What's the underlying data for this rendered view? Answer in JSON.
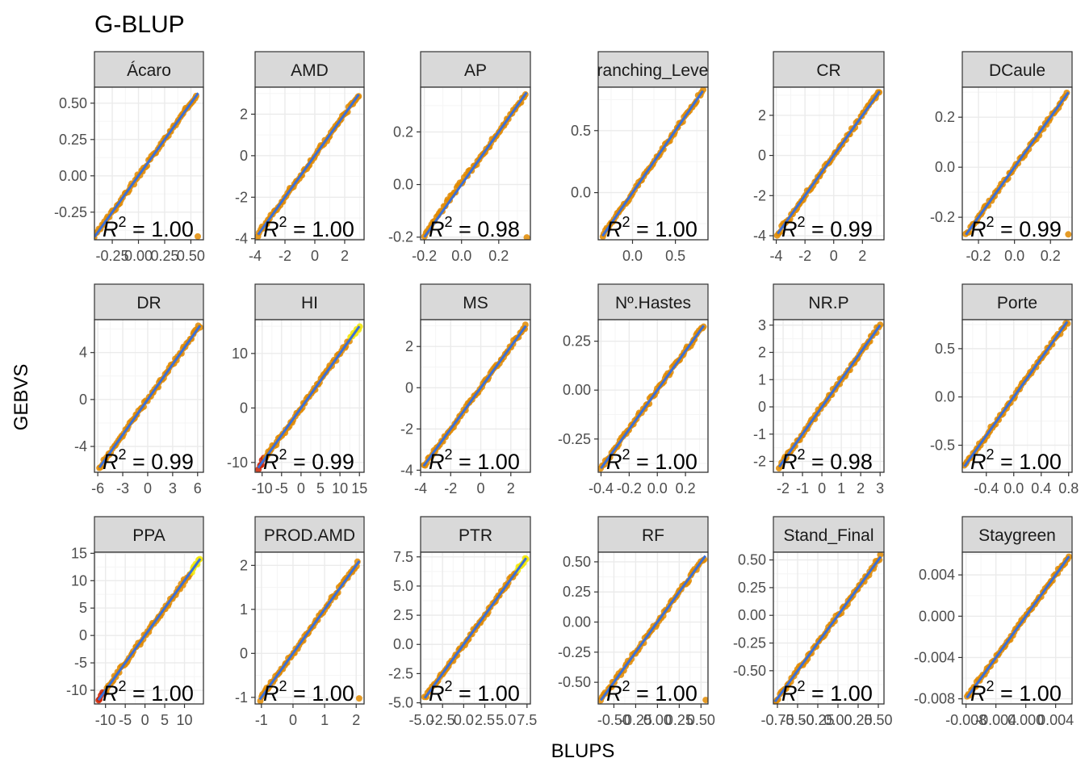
{
  "chart_data": {
    "type": "scatter",
    "title": "G-BLUP",
    "xlabel": "BLUPS",
    "ylabel": "GEBVS",
    "grid": true,
    "facets": [
      {
        "label": "Ácaro",
        "r2": "1.00",
        "xlim": [
          -0.42,
          0.62
        ],
        "ylim": [
          -0.44,
          0.61
        ],
        "xticks": [
          -0.25,
          0,
          0.25,
          0.5
        ],
        "xtick_labels": [
          "-0.25",
          "0.00",
          "0.25",
          "0.50"
        ],
        "yticks": [
          -0.25,
          0,
          0.25,
          0.5
        ],
        "ytick_labels": [
          "-0.25",
          "0.00",
          "0.25",
          "0.50"
        ],
        "points": [
          [
            -0.42,
            -0.42
          ],
          [
            -0.3,
            -0.3
          ],
          [
            -0.2,
            -0.2
          ],
          [
            -0.1,
            -0.1
          ],
          [
            0,
            0
          ],
          [
            0.1,
            0.1
          ],
          [
            0.2,
            0.2
          ],
          [
            0.3,
            0.3
          ],
          [
            0.4,
            0.4
          ],
          [
            0.5,
            0.5
          ],
          [
            0.57,
            0.57
          ]
        ]
      },
      {
        "label": "AMD",
        "r2": "1.00",
        "xlim": [
          -4.0,
          3.3
        ],
        "ylim": [
          -4.05,
          3.3
        ],
        "xticks": [
          -4,
          -2,
          0,
          2
        ],
        "xtick_labels": [
          "-4",
          "-2",
          "0",
          "2"
        ],
        "yticks": [
          -4,
          -2,
          0,
          2
        ],
        "ytick_labels": [
          "-4",
          "-2",
          "0",
          "2"
        ],
        "points": [
          [
            -3.8,
            -3.8
          ],
          [
            -3,
            -3
          ],
          [
            -2,
            -2
          ],
          [
            -1,
            -1
          ],
          [
            0,
            0
          ],
          [
            1,
            1
          ],
          [
            2,
            2
          ],
          [
            2.7,
            2.7
          ],
          [
            2.95,
            2.95
          ]
        ]
      },
      {
        "label": "AP",
        "r2": "0.98",
        "xlim": [
          -0.22,
          0.37
        ],
        "ylim": [
          -0.21,
          0.37
        ],
        "xticks": [
          -0.2,
          0,
          0.2
        ],
        "xtick_labels": [
          "-0.2",
          "0.0",
          "0.2"
        ],
        "yticks": [
          -0.2,
          0,
          0.2
        ],
        "ytick_labels": [
          "-0.2",
          "0.0",
          "0.2"
        ],
        "points": [
          [
            -0.2,
            -0.2
          ],
          [
            -0.1,
            -0.09
          ],
          [
            0,
            0.01
          ],
          [
            0.1,
            0.1
          ],
          [
            0.2,
            0.2
          ],
          [
            0.3,
            0.3
          ],
          [
            0.35,
            0.35
          ]
        ]
      },
      {
        "label": "Branching_Levels",
        "r2": "1.00",
        "xlim": [
          -0.4,
          0.88
        ],
        "ylim": [
          -0.38,
          0.85
        ],
        "xticks": [
          0,
          0.5
        ],
        "xtick_labels": [
          "0.0",
          "0.5"
        ],
        "yticks": [
          0,
          0.5
        ],
        "ytick_labels": [
          "0.0",
          "0.5"
        ],
        "points": [
          [
            -0.35,
            -0.35
          ],
          [
            -0.2,
            -0.2
          ],
          [
            0,
            0
          ],
          [
            0.2,
            0.2
          ],
          [
            0.4,
            0.4
          ],
          [
            0.6,
            0.6
          ],
          [
            0.82,
            0.82
          ]
        ]
      },
      {
        "label": "CR",
        "r2": "0.99",
        "xlim": [
          -4.2,
          3.5
        ],
        "ylim": [
          -4.2,
          3.4
        ],
        "xticks": [
          -4,
          -2,
          0,
          2
        ],
        "xtick_labels": [
          "-4",
          "-2",
          "0",
          "2"
        ],
        "yticks": [
          -4,
          -2,
          0,
          2
        ],
        "ytick_labels": [
          "-4",
          "-2",
          "0",
          "2"
        ],
        "points": [
          [
            -3.9,
            -3.9
          ],
          [
            -3,
            -3
          ],
          [
            -2,
            -2
          ],
          [
            -1,
            -1
          ],
          [
            0,
            0
          ],
          [
            1,
            1
          ],
          [
            2,
            2
          ],
          [
            3.2,
            3.2
          ]
        ]
      },
      {
        "label": "DCaule",
        "r2": "0.99",
        "xlim": [
          -0.29,
          0.32
        ],
        "ylim": [
          -0.29,
          0.32
        ],
        "xticks": [
          -0.2,
          0,
          0.2
        ],
        "xtick_labels": [
          "-0.2",
          "0.0",
          "0.2"
        ],
        "yticks": [
          -0.2,
          0,
          0.2
        ],
        "ytick_labels": [
          "-0.2",
          "0.0",
          "0.2"
        ],
        "points": [
          [
            -0.27,
            -0.27
          ],
          [
            -0.2,
            -0.2
          ],
          [
            -0.1,
            -0.1
          ],
          [
            0,
            0
          ],
          [
            0.1,
            0.1
          ],
          [
            0.2,
            0.2
          ],
          [
            0.3,
            0.3
          ]
        ]
      },
      {
        "label": "DR",
        "r2": "0.99",
        "xlim": [
          -6.4,
          6.7
        ],
        "ylim": [
          -6.2,
          6.8
        ],
        "xticks": [
          -6,
          -3,
          0,
          3,
          6
        ],
        "xtick_labels": [
          "-6",
          "-3",
          "0",
          "3",
          "6"
        ],
        "yticks": [
          -4,
          0,
          4
        ],
        "ytick_labels": [
          "-4",
          "0",
          "4"
        ],
        "points": [
          [
            -5.8,
            -5.8
          ],
          [
            -4,
            -4
          ],
          [
            -2,
            -2
          ],
          [
            0,
            0
          ],
          [
            2,
            2
          ],
          [
            4,
            4
          ],
          [
            6.3,
            6.3
          ]
        ]
      },
      {
        "label": "HI",
        "r2": "0.99",
        "xlim": [
          -11.8,
          16.2
        ],
        "ylim": [
          -11.8,
          16.2
        ],
        "xticks": [
          -10,
          -5,
          0,
          5,
          10,
          15
        ],
        "xtick_labels": [
          "-10",
          "-5",
          "0",
          "5",
          "10",
          "15"
        ],
        "yticks": [
          -10,
          0,
          10
        ],
        "ytick_labels": [
          "-10",
          "0",
          "10"
        ],
        "points": [
          [
            -11,
            -11
          ],
          [
            -8,
            -8
          ],
          [
            -5,
            -5
          ],
          [
            0,
            0
          ],
          [
            5,
            5
          ],
          [
            10,
            10
          ],
          [
            15,
            15
          ]
        ]
      },
      {
        "label": "MS",
        "r2": "1.00",
        "xlim": [
          -4.0,
          3.3
        ],
        "ylim": [
          -4.1,
          3.3
        ],
        "xticks": [
          -4,
          -2,
          0,
          2
        ],
        "xtick_labels": [
          "-4",
          "-2",
          "0",
          "2"
        ],
        "yticks": [
          -4,
          -2,
          0,
          2
        ],
        "ytick_labels": [
          "-4",
          "-2",
          "0",
          "2"
        ],
        "points": [
          [
            -3.8,
            -3.8
          ],
          [
            -3,
            -3
          ],
          [
            -2,
            -2
          ],
          [
            -1,
            -1
          ],
          [
            0,
            0
          ],
          [
            1,
            1
          ],
          [
            2,
            2
          ],
          [
            3,
            3
          ]
        ]
      },
      {
        "label": "Nº.Hastes",
        "r2": "1.00",
        "xlim": [
          -0.42,
          0.36
        ],
        "ylim": [
          -0.42,
          0.36
        ],
        "xticks": [
          -0.4,
          -0.2,
          0,
          0.2
        ],
        "xtick_labels": [
          "-0.4",
          "-0.2",
          "0.0",
          "0.2"
        ],
        "yticks": [
          -0.25,
          0,
          0.25
        ],
        "ytick_labels": [
          "-0.25",
          "0.00",
          "0.25"
        ],
        "points": [
          [
            -0.4,
            -0.4
          ],
          [
            -0.3,
            -0.3
          ],
          [
            -0.2,
            -0.2
          ],
          [
            -0.1,
            -0.1
          ],
          [
            0,
            0
          ],
          [
            0.1,
            0.1
          ],
          [
            0.2,
            0.2
          ],
          [
            0.33,
            0.33
          ]
        ]
      },
      {
        "label": "NR.P",
        "r2": "0.98",
        "xlim": [
          -2.5,
          3.2
        ],
        "ylim": [
          -2.4,
          3.2
        ],
        "xticks": [
          -2,
          -1,
          0,
          1,
          2,
          3
        ],
        "xtick_labels": [
          "-2",
          "-1",
          "0",
          "1",
          "2",
          "3"
        ],
        "yticks": [
          -2,
          -1,
          0,
          1,
          2,
          3
        ],
        "ytick_labels": [
          "-2",
          "-1",
          "0",
          "1",
          "2",
          "3"
        ],
        "points": [
          [
            -2.2,
            -2.2
          ],
          [
            -1,
            -1
          ],
          [
            0,
            0
          ],
          [
            1,
            1
          ],
          [
            2,
            2
          ],
          [
            3,
            3
          ]
        ]
      },
      {
        "label": "Porte",
        "r2": "1.00",
        "xlim": [
          -0.75,
          0.85
        ],
        "ylim": [
          -0.78,
          0.8
        ],
        "xticks": [
          -0.4,
          0,
          0.4,
          0.8
        ],
        "xtick_labels": [
          "-0.4",
          "0.0",
          "0.4",
          "0.8"
        ],
        "yticks": [
          -0.5,
          0,
          0.5
        ],
        "ytick_labels": [
          "-0.5",
          "0.0",
          "0.5"
        ],
        "points": [
          [
            -0.72,
            -0.72
          ],
          [
            -0.4,
            -0.4
          ],
          [
            0,
            0
          ],
          [
            0.4,
            0.4
          ],
          [
            0.78,
            0.78
          ]
        ]
      },
      {
        "label": "PPA",
        "r2": "1.00",
        "xlim": [
          -12.8,
          14.8
        ],
        "ylim": [
          -12.5,
          15.2
        ],
        "xticks": [
          -10,
          -5,
          0,
          5,
          10
        ],
        "xtick_labels": [
          "-10",
          "-5",
          "0",
          "5",
          "10"
        ],
        "yticks": [
          -10,
          -5,
          0,
          5,
          10,
          15
        ],
        "ytick_labels": [
          "-10",
          "-5",
          "0",
          "5",
          "10",
          "15"
        ],
        "points": [
          [
            -11.8,
            -11.8
          ],
          [
            -8,
            -8
          ],
          [
            -5,
            -5
          ],
          [
            0,
            0
          ],
          [
            5,
            5
          ],
          [
            10,
            10
          ],
          [
            14,
            14
          ]
        ]
      },
      {
        "label": "PROD.AMD",
        "r2": "1.00",
        "xlim": [
          -1.2,
          2.25
        ],
        "ylim": [
          -1.15,
          2.3
        ],
        "xticks": [
          -1,
          0,
          1,
          2
        ],
        "xtick_labels": [
          "-1",
          "0",
          "1",
          "2"
        ],
        "yticks": [
          -1,
          0,
          1,
          2
        ],
        "ytick_labels": [
          "-1",
          "0",
          "1",
          "2"
        ],
        "points": [
          [
            -1.05,
            -1.05
          ],
          [
            -0.5,
            -0.5
          ],
          [
            0,
            0
          ],
          [
            0.5,
            0.5
          ],
          [
            1,
            1
          ],
          [
            1.5,
            1.5
          ],
          [
            2.1,
            2.1
          ]
        ]
      },
      {
        "label": "PTR",
        "r2": "1.00",
        "xlim": [
          -5.1,
          7.9
        ],
        "ylim": [
          -5.1,
          7.9
        ],
        "xticks": [
          -5,
          -2.5,
          0,
          2.5,
          5,
          7.5
        ],
        "xtick_labels": [
          "-5.0",
          "-2.5",
          "0.0",
          "2.5",
          "5.0",
          "7.5"
        ],
        "yticks": [
          -5,
          -2.5,
          0,
          2.5,
          5,
          7.5
        ],
        "ytick_labels": [
          "-5.0",
          "-2.5",
          "0.0",
          "2.5",
          "5.0",
          "7.5"
        ],
        "points": [
          [
            -4.6,
            -4.6
          ],
          [
            -2.5,
            -2.5
          ],
          [
            0,
            0
          ],
          [
            2.5,
            2.5
          ],
          [
            5,
            5
          ],
          [
            7.4,
            7.4
          ]
        ]
      },
      {
        "label": "RF",
        "r2": "1.00",
        "xlim": [
          -0.68,
          0.58
        ],
        "ylim": [
          -0.68,
          0.58
        ],
        "xticks": [
          -0.5,
          -0.25,
          0,
          0.25,
          0.5
        ],
        "xtick_labels": [
          "-0.50",
          "-0.25",
          "0.00",
          "0.25",
          "0.50"
        ],
        "yticks": [
          -0.5,
          -0.25,
          0,
          0.25,
          0.5
        ],
        "ytick_labels": [
          "-0.50",
          "-0.25",
          "0.00",
          "0.25",
          "0.50"
        ],
        "points": [
          [
            -0.65,
            -0.65
          ],
          [
            -0.4,
            -0.4
          ],
          [
            -0.2,
            -0.2
          ],
          [
            0,
            0
          ],
          [
            0.2,
            0.2
          ],
          [
            0.4,
            0.4
          ],
          [
            0.55,
            0.55
          ]
        ]
      },
      {
        "label": "Stand_Final",
        "r2": "1.00",
        "xlim": [
          -0.8,
          0.57
        ],
        "ylim": [
          -0.8,
          0.57
        ],
        "xticks": [
          -0.75,
          -0.5,
          -0.25,
          0,
          0.25,
          0.5
        ],
        "xtick_labels": [
          "-0.75",
          "-0.50",
          "-0.25",
          "0.00",
          "0.25",
          "0.50"
        ],
        "yticks": [
          -0.5,
          -0.25,
          0,
          0.25,
          0.5
        ],
        "ytick_labels": [
          "-0.50",
          "-0.25",
          "0.00",
          "0.25",
          "0.50"
        ],
        "points": [
          [
            -0.78,
            -0.78
          ],
          [
            -0.5,
            -0.5
          ],
          [
            -0.25,
            -0.25
          ],
          [
            0,
            0
          ],
          [
            0.25,
            0.25
          ],
          [
            0.53,
            0.53
          ]
        ]
      },
      {
        "label": "Staygreen",
        "r2": "1.00",
        "xlim": [
          -0.0085,
          0.0062
        ],
        "ylim": [
          -0.0085,
          0.0062
        ],
        "xticks": [
          -0.008,
          -0.004,
          0,
          0.004
        ],
        "xtick_labels": [
          "-0.008",
          "-0.004",
          "0.000",
          "0.004"
        ],
        "yticks": [
          -0.008,
          -0.004,
          0,
          0.004
        ],
        "ytick_labels": [
          "-0.008",
          "-0.004",
          "0.000",
          "0.004"
        ],
        "points": [
          [
            -0.0079,
            -0.0079
          ],
          [
            -0.005,
            -0.005
          ],
          [
            -0.002,
            -0.002
          ],
          [
            0,
            0
          ],
          [
            0.002,
            0.002
          ],
          [
            0.0045,
            0.0045
          ],
          [
            0.0058,
            0.0058
          ]
        ]
      }
    ]
  },
  "colors": {
    "strip_bg": "#d9d9d9",
    "panel_border": "#333333",
    "grid_major": "#ebebeb",
    "grid_minor": "#f5f5f5",
    "point_main": "#e08a00",
    "point_low": "#cc2200",
    "point_high": "#f2e600",
    "fit_line": "#3b6fd6"
  }
}
